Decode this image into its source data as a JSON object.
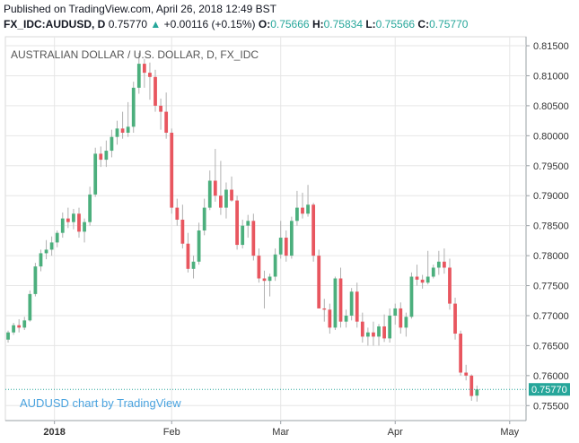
{
  "header": {
    "published": "Published on TradingView.com, April 26, 2018 12:49 BST",
    "symbol": "FX_IDC:AUDUSD, D",
    "last": "0.75770",
    "change_arrow": "▲",
    "change": "+0.00116 (+0.15%)",
    "o_label": "O:",
    "o_value": "0.75666",
    "h_label": "H:",
    "h_value": "0.75834",
    "l_label": "L:",
    "l_value": "0.75566",
    "c_label": "C:",
    "c_value": "0.75770"
  },
  "colors": {
    "up": "#4caf7d",
    "down": "#e8565f",
    "grid": "#e6e6e6",
    "label_bg": "#26a69a",
    "watermark": "#2196f3"
  },
  "chart_data": {
    "type": "candlestick",
    "title": "AUSTRALIAN DOLLAR / U.S. DOLLAR, D, FX_IDC",
    "watermark": "AUDUSD chart by TradingView",
    "last_price_label": "0.75770",
    "last_price": 0.7577,
    "ylim": [
      0.7525,
      0.8165
    ],
    "y_ticks": [
      "0.75500",
      "0.76000",
      "0.76500",
      "0.77000",
      "0.77500",
      "0.78000",
      "0.78500",
      "0.79000",
      "0.79500",
      "0.80000",
      "0.80500",
      "0.81000",
      "0.81500"
    ],
    "x_ticks": [
      {
        "label": "2018",
        "index": 8.5
      },
      {
        "label": "Feb",
        "index": 30
      },
      {
        "label": "Mar",
        "index": 50
      },
      {
        "label": "Apr",
        "index": 71
      },
      {
        "label": "May",
        "index": 92
      }
    ],
    "x_range": [
      -0.5,
      95
    ],
    "candles": [
      {
        "o": 0.766,
        "h": 0.7675,
        "l": 0.7655,
        "c": 0.7672
      },
      {
        "o": 0.7672,
        "h": 0.7688,
        "l": 0.7668,
        "c": 0.7684
      },
      {
        "o": 0.7684,
        "h": 0.7694,
        "l": 0.7672,
        "c": 0.768
      },
      {
        "o": 0.768,
        "h": 0.7698,
        "l": 0.7676,
        "c": 0.7692
      },
      {
        "o": 0.7692,
        "h": 0.7742,
        "l": 0.769,
        "c": 0.7736
      },
      {
        "o": 0.7736,
        "h": 0.7788,
        "l": 0.7732,
        "c": 0.7782
      },
      {
        "o": 0.7782,
        "h": 0.781,
        "l": 0.7774,
        "c": 0.7804
      },
      {
        "o": 0.7804,
        "h": 0.7826,
        "l": 0.7794,
        "c": 0.781
      },
      {
        "o": 0.781,
        "h": 0.7832,
        "l": 0.78,
        "c": 0.7822
      },
      {
        "o": 0.7822,
        "h": 0.7842,
        "l": 0.7814,
        "c": 0.7838
      },
      {
        "o": 0.7838,
        "h": 0.7872,
        "l": 0.783,
        "c": 0.7862
      },
      {
        "o": 0.7862,
        "h": 0.788,
        "l": 0.7846,
        "c": 0.7856
      },
      {
        "o": 0.7856,
        "h": 0.7878,
        "l": 0.7844,
        "c": 0.787
      },
      {
        "o": 0.787,
        "h": 0.788,
        "l": 0.783,
        "c": 0.784
      },
      {
        "o": 0.784,
        "h": 0.7862,
        "l": 0.7822,
        "c": 0.7856
      },
      {
        "o": 0.7856,
        "h": 0.7915,
        "l": 0.785,
        "c": 0.7902
      },
      {
        "o": 0.7902,
        "h": 0.798,
        "l": 0.7898,
        "c": 0.797
      },
      {
        "o": 0.797,
        "h": 0.7982,
        "l": 0.7948,
        "c": 0.796
      },
      {
        "o": 0.796,
        "h": 0.7992,
        "l": 0.7948,
        "c": 0.7975
      },
      {
        "o": 0.7975,
        "h": 0.801,
        "l": 0.7964,
        "c": 0.7998
      },
      {
        "o": 0.7998,
        "h": 0.8025,
        "l": 0.7985,
        "c": 0.8012
      },
      {
        "o": 0.8012,
        "h": 0.804,
        "l": 0.7995,
        "c": 0.8005
      },
      {
        "o": 0.8005,
        "h": 0.8056,
        "l": 0.7998,
        "c": 0.8015
      },
      {
        "o": 0.8015,
        "h": 0.809,
        "l": 0.8005,
        "c": 0.808
      },
      {
        "o": 0.808,
        "h": 0.8138,
        "l": 0.807,
        "c": 0.812
      },
      {
        "o": 0.812,
        "h": 0.8128,
        "l": 0.808,
        "c": 0.8105
      },
      {
        "o": 0.8105,
        "h": 0.8122,
        "l": 0.806,
        "c": 0.8098
      },
      {
        "o": 0.8098,
        "h": 0.811,
        "l": 0.804,
        "c": 0.805
      },
      {
        "o": 0.805,
        "h": 0.8062,
        "l": 0.801,
        "c": 0.804
      },
      {
        "o": 0.804,
        "h": 0.8072,
        "l": 0.7995,
        "c": 0.8005
      },
      {
        "o": 0.8005,
        "h": 0.8012,
        "l": 0.787,
        "c": 0.788
      },
      {
        "o": 0.788,
        "h": 0.7895,
        "l": 0.785,
        "c": 0.786
      },
      {
        "o": 0.786,
        "h": 0.7885,
        "l": 0.7812,
        "c": 0.782
      },
      {
        "o": 0.782,
        "h": 0.7838,
        "l": 0.7772,
        "c": 0.7778
      },
      {
        "o": 0.7778,
        "h": 0.78,
        "l": 0.7762,
        "c": 0.779
      },
      {
        "o": 0.779,
        "h": 0.7855,
        "l": 0.7785,
        "c": 0.7842
      },
      {
        "o": 0.7842,
        "h": 0.7895,
        "l": 0.7834,
        "c": 0.788
      },
      {
        "o": 0.788,
        "h": 0.7942,
        "l": 0.7876,
        "c": 0.7925
      },
      {
        "o": 0.7925,
        "h": 0.7978,
        "l": 0.789,
        "c": 0.79
      },
      {
        "o": 0.79,
        "h": 0.7958,
        "l": 0.7868,
        "c": 0.788
      },
      {
        "o": 0.788,
        "h": 0.7922,
        "l": 0.7862,
        "c": 0.791
      },
      {
        "o": 0.791,
        "h": 0.7932,
        "l": 0.789,
        "c": 0.7892
      },
      {
        "o": 0.7892,
        "h": 0.79,
        "l": 0.781,
        "c": 0.7818
      },
      {
        "o": 0.7818,
        "h": 0.786,
        "l": 0.7812,
        "c": 0.785
      },
      {
        "o": 0.785,
        "h": 0.7868,
        "l": 0.783,
        "c": 0.7858
      },
      {
        "o": 0.7858,
        "h": 0.787,
        "l": 0.7792,
        "c": 0.78
      },
      {
        "o": 0.78,
        "h": 0.7812,
        "l": 0.7755,
        "c": 0.7762
      },
      {
        "o": 0.7762,
        "h": 0.7775,
        "l": 0.7712,
        "c": 0.7758
      },
      {
        "o": 0.7758,
        "h": 0.777,
        "l": 0.7732,
        "c": 0.7765
      },
      {
        "o": 0.7765,
        "h": 0.7812,
        "l": 0.7758,
        "c": 0.7802
      },
      {
        "o": 0.7802,
        "h": 0.7858,
        "l": 0.7795,
        "c": 0.783
      },
      {
        "o": 0.783,
        "h": 0.7842,
        "l": 0.779,
        "c": 0.78
      },
      {
        "o": 0.78,
        "h": 0.7865,
        "l": 0.7795,
        "c": 0.7858
      },
      {
        "o": 0.7858,
        "h": 0.7908,
        "l": 0.785,
        "c": 0.788
      },
      {
        "o": 0.788,
        "h": 0.7905,
        "l": 0.7862,
        "c": 0.787
      },
      {
        "o": 0.787,
        "h": 0.7918,
        "l": 0.7865,
        "c": 0.7885
      },
      {
        "o": 0.7885,
        "h": 0.7888,
        "l": 0.779,
        "c": 0.78
      },
      {
        "o": 0.78,
        "h": 0.781,
        "l": 0.7712,
        "c": 0.7712
      },
      {
        "o": 0.7712,
        "h": 0.7728,
        "l": 0.769,
        "c": 0.771
      },
      {
        "o": 0.771,
        "h": 0.772,
        "l": 0.767,
        "c": 0.768
      },
      {
        "o": 0.768,
        "h": 0.7765,
        "l": 0.7676,
        "c": 0.7762
      },
      {
        "o": 0.7762,
        "h": 0.778,
        "l": 0.768,
        "c": 0.769
      },
      {
        "o": 0.769,
        "h": 0.771,
        "l": 0.768,
        "c": 0.77
      },
      {
        "o": 0.77,
        "h": 0.7746,
        "l": 0.7692,
        "c": 0.774
      },
      {
        "o": 0.774,
        "h": 0.7755,
        "l": 0.768,
        "c": 0.769
      },
      {
        "o": 0.769,
        "h": 0.7705,
        "l": 0.7655,
        "c": 0.7665
      },
      {
        "o": 0.7665,
        "h": 0.768,
        "l": 0.765,
        "c": 0.7672
      },
      {
        "o": 0.7672,
        "h": 0.769,
        "l": 0.765,
        "c": 0.7665
      },
      {
        "o": 0.7665,
        "h": 0.7686,
        "l": 0.765,
        "c": 0.7682
      },
      {
        "o": 0.7682,
        "h": 0.7702,
        "l": 0.7656,
        "c": 0.7662
      },
      {
        "o": 0.7662,
        "h": 0.7712,
        "l": 0.7655,
        "c": 0.77
      },
      {
        "o": 0.77,
        "h": 0.772,
        "l": 0.7685,
        "c": 0.7712
      },
      {
        "o": 0.7712,
        "h": 0.7722,
        "l": 0.767,
        "c": 0.768
      },
      {
        "o": 0.768,
        "h": 0.7705,
        "l": 0.7665,
        "c": 0.7698
      },
      {
        "o": 0.7698,
        "h": 0.7772,
        "l": 0.7695,
        "c": 0.7765
      },
      {
        "o": 0.7765,
        "h": 0.7785,
        "l": 0.775,
        "c": 0.776
      },
      {
        "o": 0.776,
        "h": 0.7768,
        "l": 0.7745,
        "c": 0.7755
      },
      {
        "o": 0.7755,
        "h": 0.7808,
        "l": 0.7752,
        "c": 0.7765
      },
      {
        "o": 0.7765,
        "h": 0.7785,
        "l": 0.7762,
        "c": 0.778
      },
      {
        "o": 0.778,
        "h": 0.7808,
        "l": 0.7768,
        "c": 0.779
      },
      {
        "o": 0.779,
        "h": 0.7812,
        "l": 0.777,
        "c": 0.778
      },
      {
        "o": 0.778,
        "h": 0.7795,
        "l": 0.771,
        "c": 0.772
      },
      {
        "o": 0.772,
        "h": 0.773,
        "l": 0.766,
        "c": 0.767
      },
      {
        "o": 0.767,
        "h": 0.7675,
        "l": 0.76,
        "c": 0.7605
      },
      {
        "o": 0.7605,
        "h": 0.7618,
        "l": 0.7592,
        "c": 0.76
      },
      {
        "o": 0.76,
        "h": 0.7602,
        "l": 0.7558,
        "c": 0.7566
      },
      {
        "o": 0.75666,
        "h": 0.75834,
        "l": 0.75566,
        "c": 0.7577
      }
    ]
  }
}
